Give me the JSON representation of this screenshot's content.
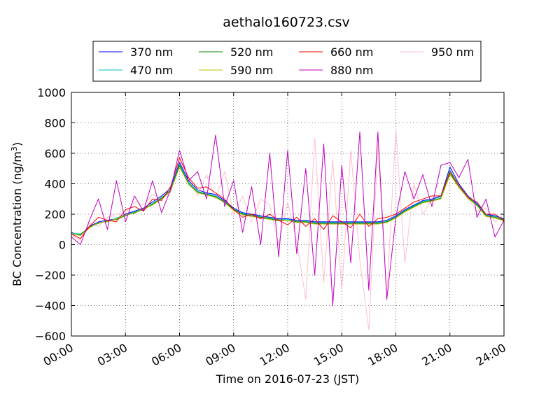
{
  "chart_data": {
    "type": "line",
    "title": "aethalo160723.csv",
    "xlabel": "Time on 2016-07-23 (JST)",
    "ylabel": "BC Concentration (ng/m³)",
    "ylabel_main": "BC Concentration (ng/m",
    "ylabel_sup": "3",
    "ylabel_end": ")",
    "xlim": [
      "00:00",
      "24:00"
    ],
    "ylim": [
      -600,
      1000
    ],
    "x_ticks": [
      "00:00",
      "03:00",
      "06:00",
      "09:00",
      "12:00",
      "15:00",
      "18:00",
      "21:00",
      "24:00"
    ],
    "y_ticks": [
      -600,
      -400,
      -200,
      0,
      200,
      400,
      600,
      800,
      1000
    ],
    "grid": true,
    "legend_position": "top",
    "x": [
      "00:00",
      "00:30",
      "01:00",
      "01:30",
      "02:00",
      "02:30",
      "03:00",
      "03:30",
      "04:00",
      "04:30",
      "05:00",
      "05:30",
      "06:00",
      "06:30",
      "07:00",
      "07:30",
      "08:00",
      "08:30",
      "09:00",
      "09:30",
      "10:00",
      "10:30",
      "11:00",
      "11:30",
      "12:00",
      "12:30",
      "13:00",
      "13:30",
      "14:00",
      "14:30",
      "15:00",
      "15:30",
      "16:00",
      "16:30",
      "17:00",
      "17:30",
      "18:00",
      "18:30",
      "19:00",
      "19:30",
      "20:00",
      "20:30",
      "21:00",
      "21:30",
      "22:00",
      "22:30",
      "23:00",
      "23:30",
      "24:00"
    ],
    "series": [
      {
        "name": "370 nm",
        "color": "#0000ff",
        "values": [
          80,
          60,
          120,
          150,
          160,
          170,
          200,
          220,
          240,
          280,
          320,
          370,
          540,
          420,
          360,
          340,
          330,
          290,
          240,
          210,
          200,
          190,
          180,
          170,
          170,
          160,
          160,
          150,
          150,
          150,
          150,
          150,
          150,
          150,
          150,
          160,
          190,
          230,
          260,
          290,
          300,
          320,
          510,
          400,
          320,
          270,
          200,
          190,
          170
        ]
      },
      {
        "name": "470 nm",
        "color": "#00bfbf",
        "values": [
          75,
          70,
          110,
          145,
          150,
          175,
          195,
          215,
          235,
          270,
          310,
          360,
          530,
          410,
          350,
          335,
          320,
          285,
          235,
          205,
          195,
          185,
          175,
          165,
          165,
          155,
          155,
          145,
          145,
          145,
          145,
          145,
          145,
          145,
          145,
          155,
          185,
          225,
          255,
          285,
          295,
          315,
          490,
          390,
          315,
          265,
          195,
          185,
          165
        ]
      },
      {
        "name": "520 nm",
        "color": "#008000",
        "values": [
          70,
          65,
          115,
          140,
          155,
          165,
          190,
          210,
          230,
          265,
          305,
          355,
          520,
          400,
          345,
          330,
          315,
          280,
          230,
          200,
          190,
          180,
          170,
          160,
          160,
          150,
          150,
          140,
          140,
          140,
          140,
          140,
          140,
          140,
          140,
          150,
          180,
          220,
          250,
          280,
          290,
          305,
          470,
          380,
          310,
          260,
          190,
          180,
          160
        ]
      },
      {
        "name": "590 nm",
        "color": "#bfbf00",
        "values": [
          72,
          60,
          110,
          145,
          150,
          170,
          195,
          205,
          235,
          260,
          300,
          350,
          510,
          395,
          340,
          325,
          310,
          275,
          225,
          195,
          185,
          175,
          165,
          155,
          160,
          145,
          145,
          135,
          135,
          135,
          135,
          135,
          135,
          135,
          135,
          145,
          175,
          215,
          245,
          275,
          285,
          300,
          460,
          375,
          305,
          255,
          185,
          175,
          155
        ]
      },
      {
        "name": "660 nm",
        "color": "#ff0000",
        "values": [
          70,
          40,
          120,
          180,
          160,
          150,
          230,
          250,
          220,
          300,
          290,
          380,
          570,
          440,
          370,
          380,
          340,
          300,
          230,
          180,
          200,
          170,
          200,
          160,
          130,
          180,
          120,
          170,
          100,
          190,
          150,
          110,
          200,
          120,
          170,
          180,
          200,
          240,
          280,
          300,
          320,
          320,
          480,
          390,
          310,
          280,
          200,
          200,
          160
        ]
      },
      {
        "name": "880 nm",
        "color": "#bf00bf",
        "values": [
          50,
          0,
          160,
          300,
          100,
          420,
          150,
          320,
          220,
          420,
          210,
          360,
          620,
          420,
          480,
          300,
          720,
          250,
          420,
          80,
          380,
          0,
          600,
          -80,
          620,
          -60,
          500,
          -200,
          660,
          -400,
          520,
          -120,
          740,
          -300,
          740,
          -360,
          180,
          480,
          300,
          460,
          250,
          520,
          540,
          440,
          560,
          180,
          300,
          50,
          160
        ]
      },
      {
        "name": "950 nm",
        "color": "#ffc0cb",
        "values": [
          60,
          30,
          140,
          120,
          180,
          200,
          210,
          280,
          260,
          330,
          300,
          340,
          560,
          440,
          320,
          460,
          300,
          480,
          200,
          320,
          150,
          300,
          260,
          0,
          280,
          20,
          -360,
          700,
          -250,
          560,
          -300,
          620,
          -100,
          -560,
          650,
          -330,
          760,
          -120,
          400,
          200,
          300,
          320,
          460,
          380,
          300,
          220,
          240,
          150,
          200
        ]
      }
    ]
  }
}
